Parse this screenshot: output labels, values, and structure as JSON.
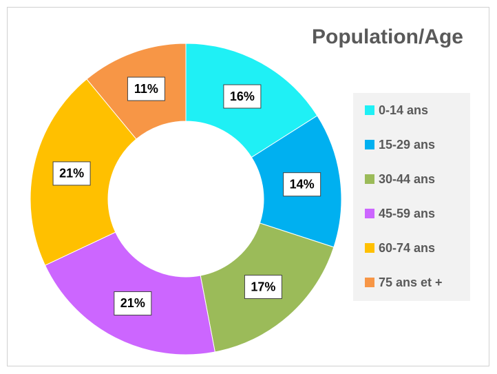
{
  "chart_data": {
    "type": "pie",
    "title": "Population/Age",
    "categories": [
      "0-14 ans",
      "15-29 ans",
      "30-44 ans",
      "45-59 ans",
      "60-74 ans",
      "75 ans et +"
    ],
    "values": [
      16,
      14,
      17,
      21,
      21,
      11
    ],
    "value_labels": [
      "16%",
      "14%",
      "17%",
      "21%",
      "21%",
      "11%"
    ],
    "colors": [
      "#1ff0f5",
      "#00b0f0",
      "#9bbb59",
      "#cc66ff",
      "#ffc000",
      "#f79646"
    ],
    "donut": true,
    "legend": "right"
  }
}
